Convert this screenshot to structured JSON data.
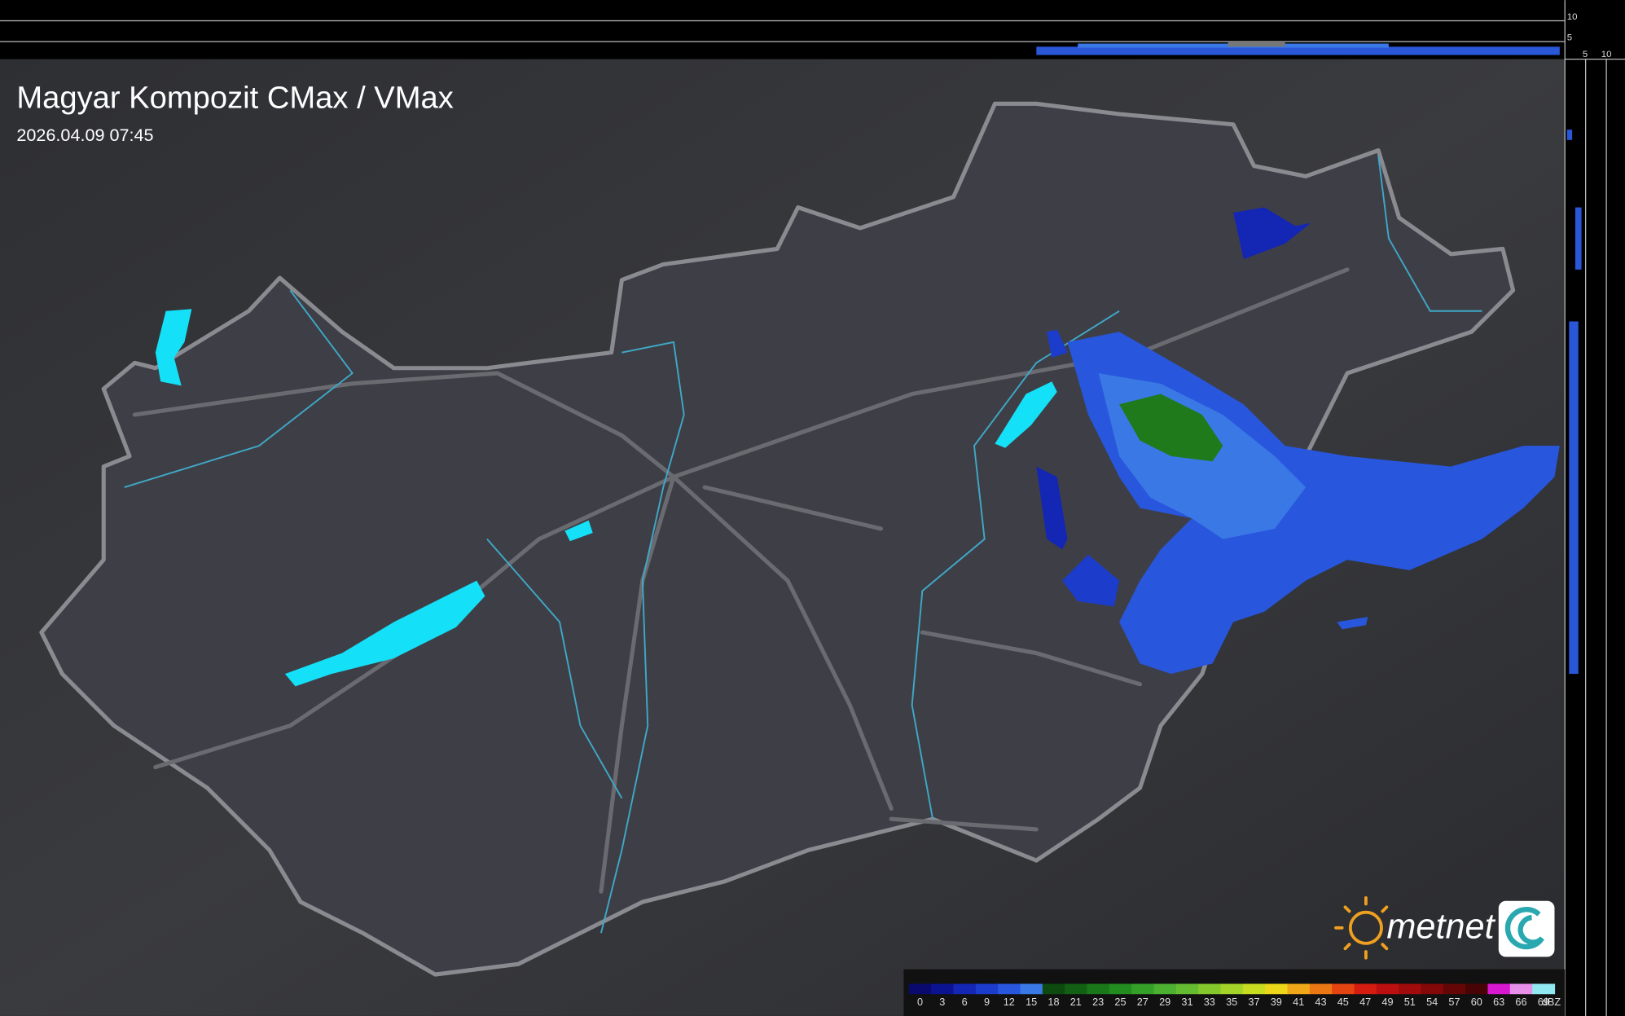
{
  "header": {
    "title": "Magyar Kompozit CMax / VMax",
    "timestamp": "2026.04.09 07:45"
  },
  "profile_ticks": {
    "top": [
      "10",
      "5"
    ],
    "side": [
      "5",
      "10"
    ]
  },
  "logo": {
    "text": "metnet"
  },
  "legend": {
    "unit": "dBZ",
    "steps": [
      {
        "label": "0",
        "color": "#0a0a6e"
      },
      {
        "label": "3",
        "color": "#0c1390"
      },
      {
        "label": "6",
        "color": "#1426b4"
      },
      {
        "label": "9",
        "color": "#1c3ccc"
      },
      {
        "label": "12",
        "color": "#2856dc"
      },
      {
        "label": "15",
        "color": "#3a78e6"
      },
      {
        "label": "18",
        "color": "#0c4a10"
      },
      {
        "label": "21",
        "color": "#126014"
      },
      {
        "label": "23",
        "color": "#1a781a"
      },
      {
        "label": "25",
        "color": "#228c20"
      },
      {
        "label": "27",
        "color": "#34a028"
      },
      {
        "label": "29",
        "color": "#4cb030"
      },
      {
        "label": "31",
        "color": "#66bc30"
      },
      {
        "label": "33",
        "color": "#84c82c"
      },
      {
        "label": "35",
        "color": "#a4d428"
      },
      {
        "label": "37",
        "color": "#c8dc20"
      },
      {
        "label": "39",
        "color": "#ecd818"
      },
      {
        "label": "41",
        "color": "#f0a818"
      },
      {
        "label": "43",
        "color": "#ec7814"
      },
      {
        "label": "45",
        "color": "#e44410"
      },
      {
        "label": "47",
        "color": "#d41c10"
      },
      {
        "label": "49",
        "color": "#bc1010"
      },
      {
        "label": "51",
        "color": "#a00c0c"
      },
      {
        "label": "54",
        "color": "#840808"
      },
      {
        "label": "57",
        "color": "#640606"
      },
      {
        "label": "60",
        "color": "#480404"
      },
      {
        "label": "63",
        "color": "#d818d0"
      },
      {
        "label": "66",
        "color": "#e890e8"
      },
      {
        "label": "69",
        "color": "#90e8f0"
      }
    ]
  }
}
